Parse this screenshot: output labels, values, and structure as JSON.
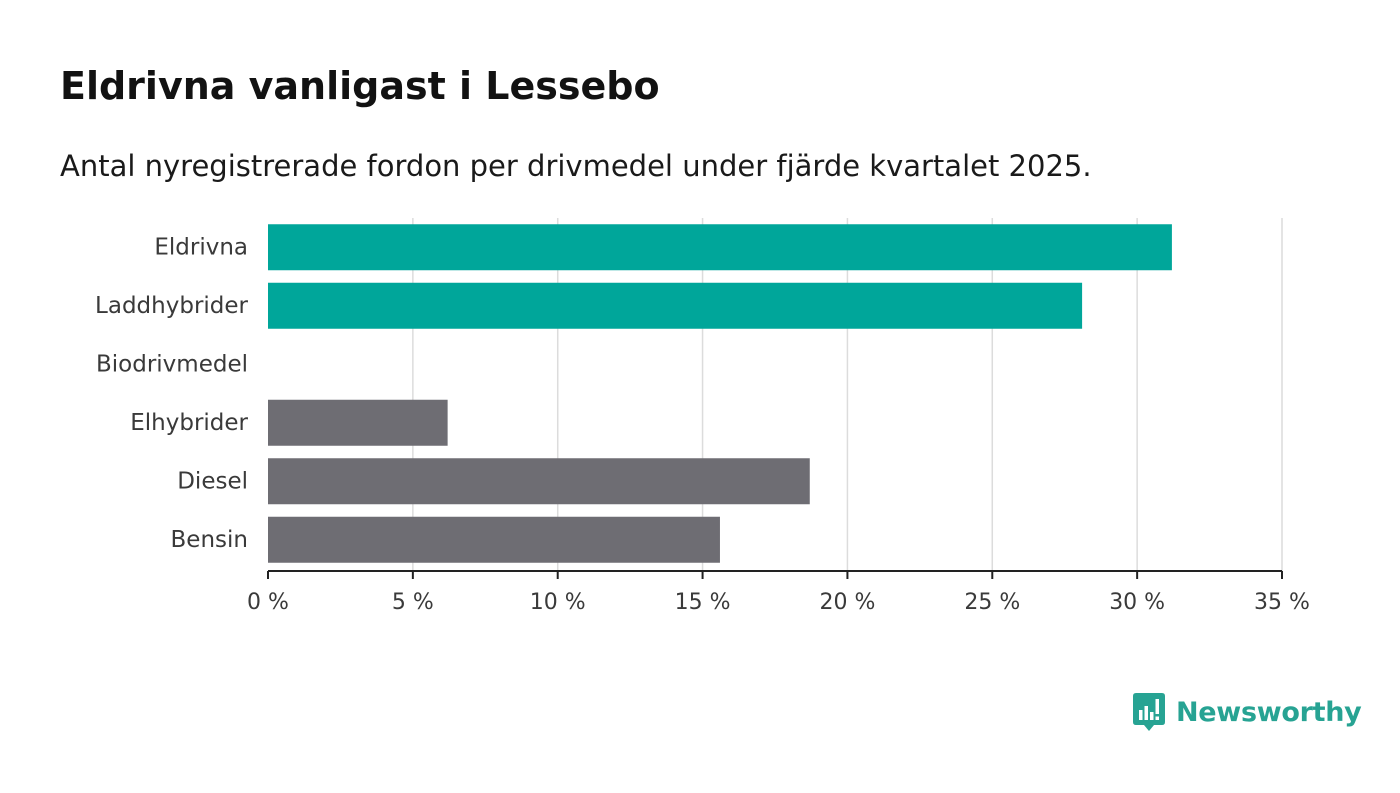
{
  "title": "Eldrivna vanligast i Lessebo",
  "subtitle": "Antal nyregistrerade fordon per drivmedel under fjärde kvartalet 2025.",
  "brand": {
    "name": "Newsworthy",
    "icon": "newsworthy-logo-icon",
    "color": "#27a393"
  },
  "chart_data": {
    "type": "bar",
    "orientation": "horizontal",
    "title": "Eldrivna vanligast i Lessebo",
    "subtitle": "Antal nyregistrerade fordon per drivmedel under fjärde kvartalet 2025.",
    "categories": [
      "Eldrivna",
      "Laddhybrider",
      "Biodrivmedel",
      "Elhybrider",
      "Diesel",
      "Bensin"
    ],
    "values": [
      31.2,
      28.1,
      0,
      6.2,
      18.7,
      15.6
    ],
    "colors": [
      "#00a69a",
      "#00a69a",
      "#00a69a",
      "#6e6d73",
      "#6e6d73",
      "#6e6d73"
    ],
    "xlim": [
      0,
      35
    ],
    "xticks": [
      0,
      5,
      10,
      15,
      20,
      25,
      30,
      35
    ],
    "xtick_labels": [
      "0 %",
      "5 %",
      "10 %",
      "15 %",
      "20 %",
      "25 %",
      "30 %",
      "35 %"
    ],
    "xlabel": "",
    "ylabel": "",
    "grid": true,
    "legend": "none"
  }
}
